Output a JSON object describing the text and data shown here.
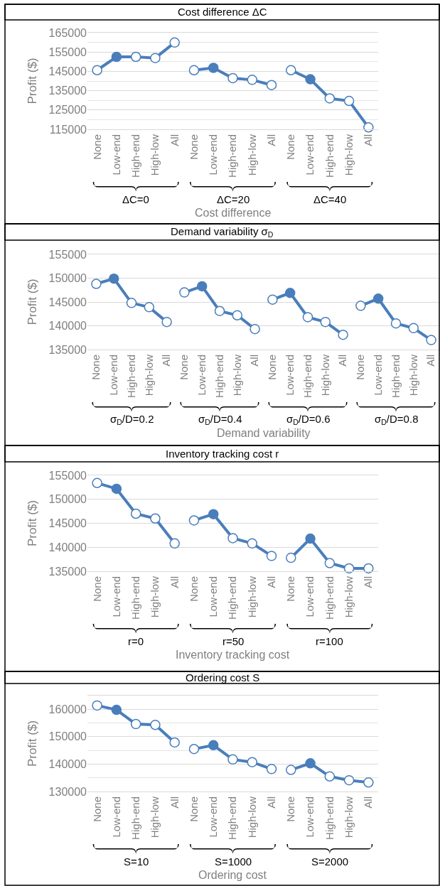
{
  "chart_data": [
    {
      "type": "line",
      "title": "Cost difference ΔC",
      "xlabel": "Cost difference",
      "ylabel": "Profit ($)",
      "grid": "y",
      "marker": "circle",
      "line_style": "solid",
      "annotations": [
        "ΔC=0",
        "ΔC=20",
        "ΔC=40"
      ],
      "categories": [
        "None",
        "Low-end",
        "High-end",
        "High-low",
        "All",
        "None",
        "Low-end",
        "High-end",
        "High-low",
        "All",
        "None",
        "Low-end",
        "High-end",
        "High-low",
        "All"
      ],
      "ylim": [
        115000,
        165000
      ],
      "yticks": [
        115000,
        {
          "value": 120000,
          "label": null
        },
        125000,
        {
          "value": 130000,
          "label": null
        },
        135000,
        {
          "value": 140000,
          "label": null
        },
        145000,
        {
          "value": 150000,
          "label": null
        },
        155000,
        {
          "value": 160000,
          "label": null
        },
        165000
      ],
      "series": [
        {
          "color": "#4a7ebb",
          "values": [
            145600,
            152500,
            152500,
            151900,
            159900,
            null,
            null,
            null,
            null,
            null,
            null,
            null,
            null,
            null,
            null
          ],
          "colors": [
            "#ffffff",
            "#4a7ebb",
            "#ffffff",
            "#ffffff",
            "#ffffff",
            null,
            null,
            null,
            null,
            null,
            null,
            null,
            null,
            null,
            null
          ]
        },
        {
          "color": "#4a7ebb",
          "values": [
            null,
            null,
            null,
            null,
            null,
            145600,
            146800,
            141500,
            140600,
            137900,
            null,
            null,
            null,
            null,
            null
          ],
          "colors": [
            null,
            null,
            null,
            null,
            null,
            "#ffffff",
            "#4a7ebb",
            "#ffffff",
            "#ffffff",
            "#ffffff",
            null,
            null,
            null,
            null,
            null
          ]
        },
        {
          "color": "#4a7ebb",
          "values": [
            null,
            null,
            null,
            null,
            null,
            null,
            null,
            null,
            null,
            null,
            145600,
            140900,
            131000,
            129700,
            116000
          ],
          "colors": [
            null,
            null,
            null,
            null,
            null,
            null,
            null,
            null,
            null,
            null,
            "#ffffff",
            "#4a7ebb",
            "#ffffff",
            "#ffffff",
            "#ffffff"
          ]
        }
      ]
    },
    {
      "type": "line",
      "title": "Demand variability σ$_{D}$",
      "xlabel": "Demand variability",
      "ylabel": "Profit ($)",
      "grid": "y",
      "marker": "circle",
      "line_style": "solid",
      "annotations": [
        "σ$_{D}$/D=0.2",
        "σ$_{D}$/D=0.4",
        "σ$_{D}$/D=0.6",
        "σ$_{D}$/D=0.8"
      ],
      "categories": [
        "None",
        "Low-end",
        "High-end",
        "High-low",
        "All",
        "None",
        "Low-end",
        "High-end",
        "High-low",
        "All",
        "None",
        "Low-end",
        "High-end",
        "High-low",
        "All",
        "None",
        "Low-end",
        "High-end",
        "High-low",
        "All"
      ],
      "ylim": [
        135000,
        155000
      ],
      "yticks": [
        135000,
        140000,
        145000,
        150000,
        155000
      ],
      "series": [
        {
          "color": "#4a7ebb",
          "values": [
            148800,
            149900,
            144800,
            143900,
            140800,
            null,
            null,
            null,
            null,
            null,
            null,
            null,
            null,
            null,
            null,
            null,
            null,
            null,
            null,
            null
          ],
          "colors": [
            "#ffffff",
            "#4a7ebb",
            "#ffffff",
            "#ffffff",
            "#ffffff",
            null,
            null,
            null,
            null,
            null,
            null,
            null,
            null,
            null,
            null,
            null,
            null,
            null,
            null,
            null
          ]
        },
        {
          "color": "#4a7ebb",
          "values": [
            null,
            null,
            null,
            null,
            null,
            147000,
            148300,
            143100,
            142200,
            139300,
            null,
            null,
            null,
            null,
            null,
            null,
            null,
            null,
            null,
            null
          ],
          "colors": [
            null,
            null,
            null,
            null,
            null,
            "#ffffff",
            "#4a7ebb",
            "#ffffff",
            "#ffffff",
            "#ffffff",
            null,
            null,
            null,
            null,
            null,
            null,
            null,
            null,
            null,
            null
          ]
        },
        {
          "color": "#4a7ebb",
          "values": [
            null,
            null,
            null,
            null,
            null,
            null,
            null,
            null,
            null,
            null,
            145500,
            146900,
            141800,
            140800,
            138100,
            null,
            null,
            null,
            null,
            null
          ],
          "colors": [
            null,
            null,
            null,
            null,
            null,
            null,
            null,
            null,
            null,
            null,
            "#ffffff",
            "#4a7ebb",
            "#ffffff",
            "#ffffff",
            "#ffffff",
            null,
            null,
            null,
            null,
            null
          ]
        },
        {
          "color": "#4a7ebb",
          "values": [
            null,
            null,
            null,
            null,
            null,
            null,
            null,
            null,
            null,
            null,
            null,
            null,
            null,
            null,
            null,
            144200,
            145700,
            140500,
            139500,
            137000
          ],
          "colors": [
            null,
            null,
            null,
            null,
            null,
            null,
            null,
            null,
            null,
            null,
            null,
            null,
            null,
            null,
            null,
            "#ffffff",
            "#4a7ebb",
            "#ffffff",
            "#ffffff",
            "#ffffff"
          ]
        }
      ]
    },
    {
      "type": "line",
      "title": "Inventory tracking cost r",
      "xlabel": "Inventory tracking cost",
      "ylabel": "Profit ($)",
      "grid": "y",
      "marker": "circle",
      "line_style": "solid",
      "annotations": [
        "r=0",
        "r=50",
        "r=100"
      ],
      "categories": [
        "None",
        "Low-end",
        "High-end",
        "High-low",
        "All",
        "None",
        "Low-end",
        "High-end",
        "High-low",
        "All",
        "None",
        "Low-end",
        "High-end",
        "High-low",
        "All"
      ],
      "ylim": [
        135000,
        155000
      ],
      "yticks": [
        135000,
        140000,
        145000,
        150000,
        155000
      ],
      "series": [
        {
          "color": "#4a7ebb",
          "values": [
            153400,
            152200,
            147000,
            146000,
            140800,
            null,
            null,
            null,
            null,
            null,
            null,
            null,
            null,
            null,
            null
          ],
          "colors": [
            "#ffffff",
            "#4a7ebb",
            "#ffffff",
            "#ffffff",
            "#ffffff",
            null,
            null,
            null,
            null,
            null,
            null,
            null,
            null,
            null,
            null
          ]
        },
        {
          "color": "#4a7ebb",
          "values": [
            null,
            null,
            null,
            null,
            null,
            145600,
            146900,
            141900,
            140800,
            138200,
            null,
            null,
            null,
            null,
            null
          ],
          "colors": [
            null,
            null,
            null,
            null,
            null,
            "#ffffff",
            "#4a7ebb",
            "#ffffff",
            "#ffffff",
            "#ffffff",
            null,
            null,
            null,
            null,
            null
          ]
        },
        {
          "color": "#4a7ebb",
          "values": [
            null,
            null,
            null,
            null,
            null,
            null,
            null,
            null,
            null,
            null,
            137800,
            141800,
            136700,
            135600,
            135600
          ],
          "colors": [
            null,
            null,
            null,
            null,
            null,
            null,
            null,
            null,
            null,
            null,
            "#ffffff",
            "#4a7ebb",
            "#ffffff",
            "#ffffff",
            "#ffffff"
          ]
        }
      ]
    },
    {
      "type": "line",
      "title": "Ordering cost S",
      "xlabel": "Ordering cost",
      "ylabel": "Profit ($)",
      "grid": "y",
      "marker": "circle",
      "line_style": "solid",
      "annotations": [
        "S=10",
        "S=1000",
        "S=2000"
      ],
      "categories": [
        "None",
        "Low-end",
        "High-end",
        "High-low",
        "All",
        "None",
        "Low-end",
        "High-end",
        "High-low",
        "All",
        "None",
        "Low-end",
        "High-end",
        "High-low",
        "All"
      ],
      "ylim": [
        130000,
        165000
      ],
      "yticks": [
        130000,
        {
          "value": 135000,
          "label": null
        },
        140000,
        {
          "value": 145000,
          "label": null
        },
        150000,
        {
          "value": 155000,
          "label": null
        },
        160000,
        {
          "value": 165000,
          "label": null
        }
      ],
      "series": [
        {
          "color": "#4a7ebb",
          "values": [
            161400,
            159800,
            154600,
            154300,
            147900,
            null,
            null,
            null,
            null,
            null,
            null,
            null,
            null,
            null,
            null
          ],
          "colors": [
            "#ffffff",
            "#4a7ebb",
            "#ffffff",
            "#ffffff",
            "#ffffff",
            null,
            null,
            null,
            null,
            null,
            null,
            null,
            null,
            null,
            null
          ]
        },
        {
          "color": "#4a7ebb",
          "values": [
            null,
            null,
            null,
            null,
            null,
            145500,
            146900,
            141700,
            140700,
            138200,
            null,
            null,
            null,
            null,
            null
          ],
          "colors": [
            null,
            null,
            null,
            null,
            null,
            "#ffffff",
            "#4a7ebb",
            "#ffffff",
            "#ffffff",
            "#ffffff",
            null,
            null,
            null,
            null,
            null
          ]
        },
        {
          "color": "#4a7ebb",
          "values": [
            null,
            null,
            null,
            null,
            null,
            null,
            null,
            null,
            null,
            null,
            137900,
            140300,
            135500,
            134100,
            133300
          ],
          "colors": [
            null,
            null,
            null,
            null,
            null,
            null,
            null,
            null,
            null,
            null,
            "#ffffff",
            "#4a7ebb",
            "#ffffff",
            "#ffffff",
            "#ffffff"
          ]
        }
      ]
    }
  ]
}
